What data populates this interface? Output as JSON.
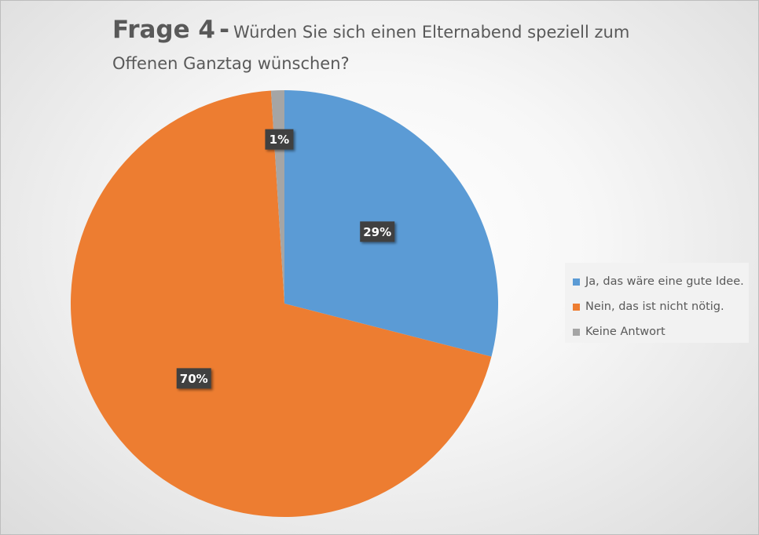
{
  "title": {
    "main": "Frage 4",
    "dash": "-",
    "sub": "Würden Sie sich einen Elternabend speziell zum Offenen Ganztag wünschen?"
  },
  "chart_data": {
    "type": "pie",
    "title": "Frage 4 - Würden Sie sich einen Elternabend speziell zum Offenen Ganztag wünschen?",
    "start_angle": "12 o'clock, clockwise",
    "legend_position": "right",
    "slices": [
      {
        "label": "Ja, das wäre eine gute Idee.",
        "value": 29,
        "display": "29%",
        "color": "#5b9bd5"
      },
      {
        "label": "Nein, das ist nicht nötig.",
        "value": 70,
        "display": "70%",
        "color": "#ed7d31"
      },
      {
        "label": "Keine Antwort",
        "value": 1,
        "display": "1%",
        "color": "#a5a5a5"
      }
    ]
  }
}
